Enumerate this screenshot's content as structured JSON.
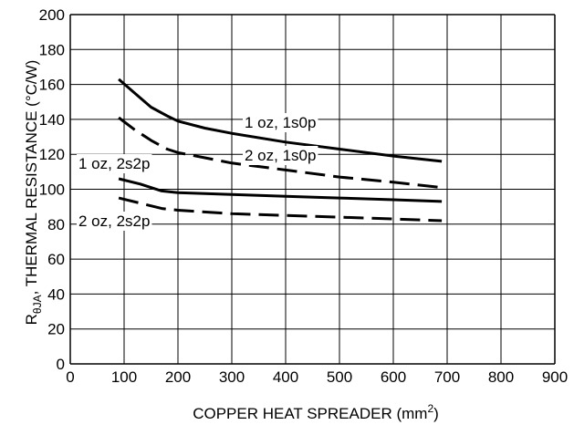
{
  "chart_data": {
    "type": "line",
    "xlabel": "COPPER HEAT SPREADER (mm",
    "xlabel_sup": "2",
    "xlabel_close": ")",
    "ylabel_r": "R",
    "ylabel_sub": "θJA",
    "ylabel_rest": ", THERMAL RESISTANCE (°C/W)",
    "xlim": [
      0,
      900
    ],
    "ylim": [
      0,
      200
    ],
    "x_ticks": [
      0,
      100,
      200,
      300,
      400,
      500,
      600,
      700,
      800,
      900
    ],
    "y_ticks": [
      0,
      20,
      40,
      60,
      80,
      100,
      120,
      140,
      160,
      180,
      200
    ],
    "grid": true,
    "legend": "none (inline labels)",
    "series": [
      {
        "name": "1 oz, 1s0p",
        "style": "solid",
        "x": [
          90,
          120,
          150,
          180,
          200,
          250,
          300,
          400,
          500,
          600,
          690
        ],
        "y": [
          163,
          155,
          147,
          142,
          139,
          135,
          132,
          127,
          123,
          119,
          116
        ]
      },
      {
        "name": "2 oz, 1s0p",
        "style": "dashed",
        "x": [
          90,
          120,
          150,
          180,
          200,
          250,
          300,
          400,
          500,
          600,
          690
        ],
        "y": [
          141,
          134,
          128,
          123,
          121,
          118,
          115,
          111,
          107,
          104,
          101
        ]
      },
      {
        "name": "1 oz, 2s2p",
        "style": "solid",
        "x": [
          90,
          130,
          170,
          200,
          300,
          400,
          500,
          600,
          690
        ],
        "y": [
          106,
          103,
          99,
          98,
          97,
          96,
          95,
          94,
          93
        ]
      },
      {
        "name": "2 oz, 2s2p",
        "style": "dashed",
        "x": [
          90,
          130,
          170,
          200,
          300,
          400,
          500,
          600,
          690
        ],
        "y": [
          95,
          92,
          89,
          88,
          86,
          85,
          84,
          83,
          82
        ]
      }
    ]
  }
}
